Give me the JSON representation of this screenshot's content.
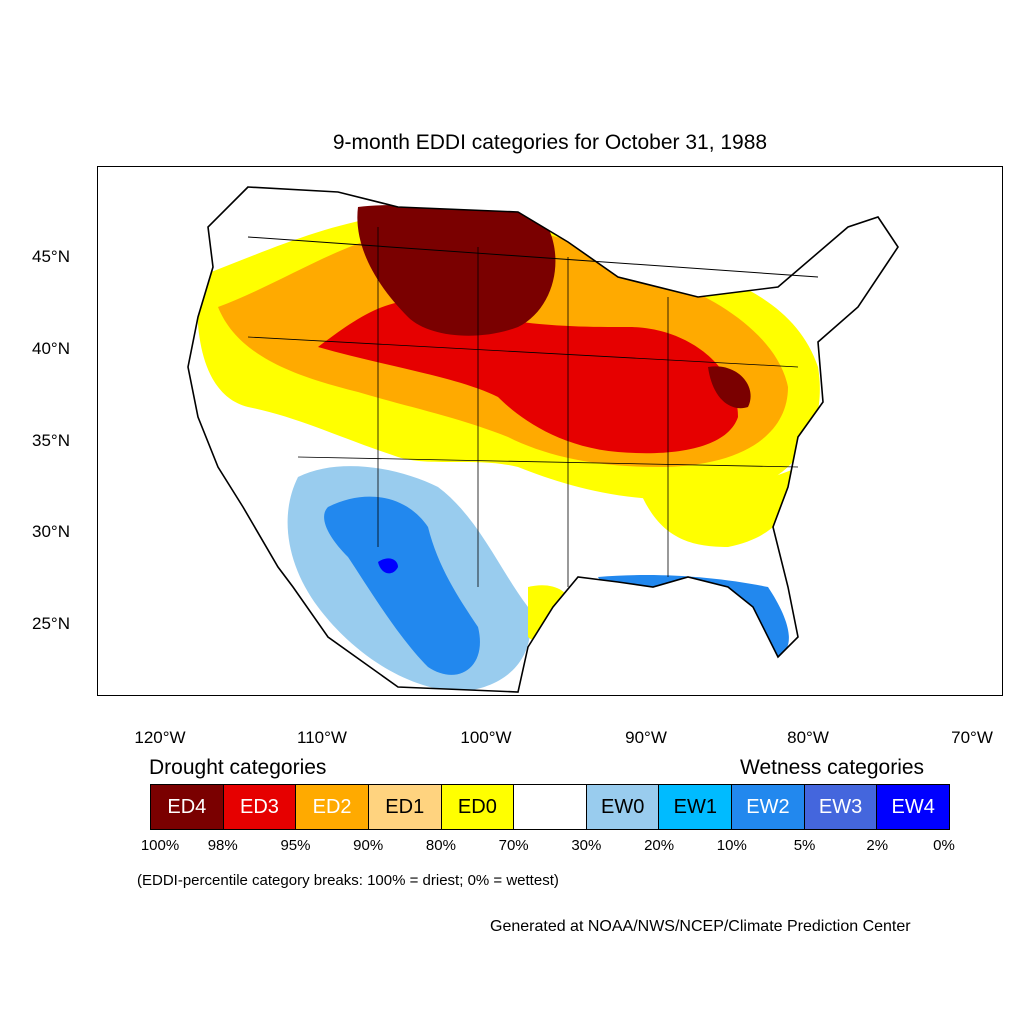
{
  "title": "9-month EDDI categories for October 31, 1988",
  "lat_ticks": [
    "45°N",
    "40°N",
    "35°N",
    "30°N",
    "25°N"
  ],
  "lon_ticks": [
    "120°W",
    "110°W",
    "100°W",
    "90°W",
    "80°W",
    "70°W"
  ],
  "legend": {
    "drought_heading": "Drought categories",
    "wetness_heading": "Wetness categories",
    "categories": [
      {
        "label": "ED4",
        "color": "#7a0000",
        "text_color": "#ffffff"
      },
      {
        "label": "ED3",
        "color": "#e60000",
        "text_color": "#ffffff"
      },
      {
        "label": "ED2",
        "color": "#ffaa00",
        "text_color": "#ffffff"
      },
      {
        "label": "ED1",
        "color": "#ffd37f",
        "text_color": "#000000"
      },
      {
        "label": "ED0",
        "color": "#ffff00",
        "text_color": "#000000"
      },
      {
        "label": "",
        "color": "#ffffff",
        "text_color": "#000000"
      },
      {
        "label": "EW0",
        "color": "#99ccee",
        "text_color": "#000000"
      },
      {
        "label": "EW1",
        "color": "#00bbff",
        "text_color": "#000000"
      },
      {
        "label": "EW2",
        "color": "#2288ee",
        "text_color": "#ffffff"
      },
      {
        "label": "EW3",
        "color": "#4466dd",
        "text_color": "#ffffff"
      },
      {
        "label": "EW4",
        "color": "#0000ff",
        "text_color": "#ffffff"
      }
    ],
    "breaks": [
      "100%",
      "98%",
      "95%",
      "90%",
      "80%",
      "70%",
      "30%",
      "20%",
      "10%",
      "5%",
      "2%",
      "0%"
    ],
    "note": "(EDDI-percentile category breaks: 100% = driest; 0% = wettest)"
  },
  "credit": "Generated at NOAA/NWS/NCEP/Climate Prediction Center"
}
